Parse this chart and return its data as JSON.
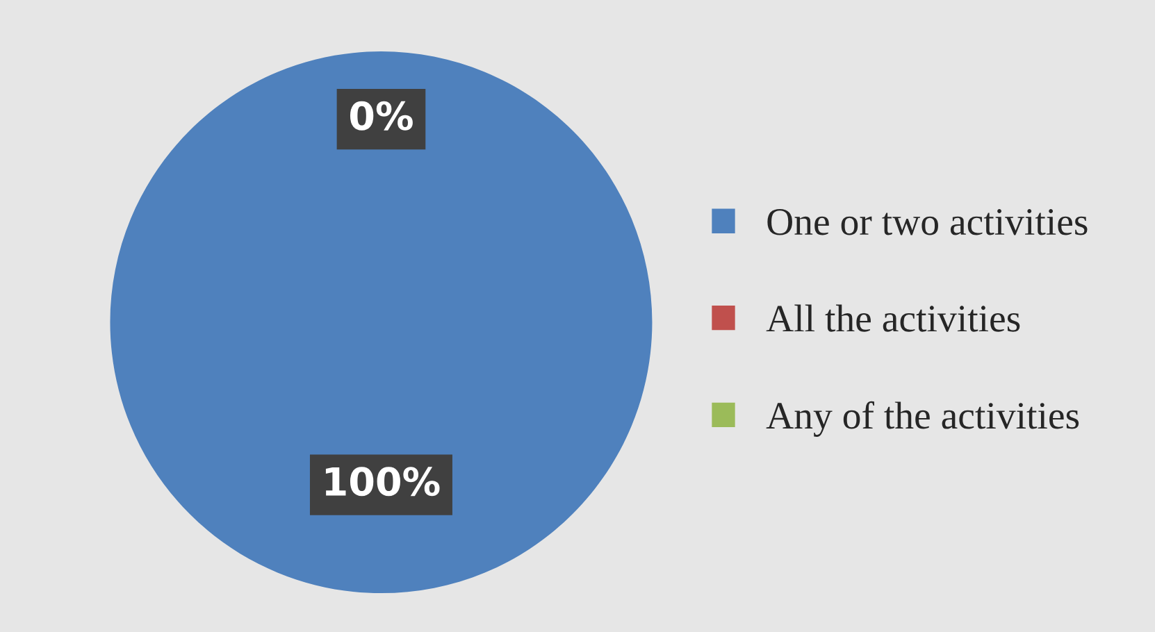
{
  "chart_data": {
    "type": "pie",
    "categories": [
      "One or two activities",
      "All the activities",
      "Any of the activities"
    ],
    "values": [
      100,
      0,
      0
    ],
    "colors": [
      "#4f81bd",
      "#c0504d",
      "#9bbb59"
    ],
    "value_labels": [
      "100%",
      "0%",
      null
    ],
    "legend": "right"
  }
}
